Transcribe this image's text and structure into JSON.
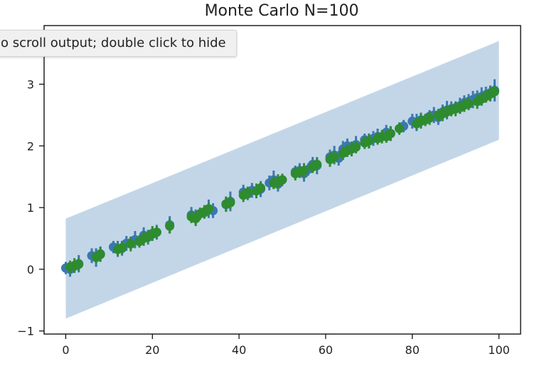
{
  "tooltip": {
    "text": "o scroll output; double click to hide"
  },
  "chart_data": {
    "type": "scatter",
    "title": "Monte Carlo N=100",
    "xlabel": "",
    "ylabel": "",
    "xlim": [
      -5,
      105
    ],
    "ylim": [
      -1.05,
      3.95
    ],
    "xticks": [
      0,
      20,
      40,
      60,
      80,
      100
    ],
    "yticks": [
      -1,
      0,
      1,
      2,
      3
    ],
    "grid": false,
    "band": {
      "x": [
        0,
        100
      ],
      "lower": [
        -0.8,
        2.1
      ],
      "upper": [
        0.82,
        3.7
      ]
    },
    "series": [
      {
        "x": [
          0,
          1,
          2,
          3,
          6,
          7,
          8,
          11,
          12,
          13,
          14,
          15,
          16,
          18,
          19,
          20,
          21,
          24,
          29,
          30,
          32,
          33,
          34,
          37,
          38,
          41,
          42,
          43,
          45,
          47,
          48,
          49,
          53,
          54,
          55,
          56,
          57,
          58,
          61,
          62,
          63,
          64,
          65,
          67,
          69,
          70,
          71,
          72,
          74,
          75,
          78,
          80,
          81,
          82,
          84,
          85,
          86,
          87,
          88,
          89,
          90,
          91,
          92,
          93,
          94,
          95,
          96,
          97,
          98,
          99
        ],
        "y": [
          0.02,
          0.0,
          0.05,
          0.09,
          0.22,
          0.19,
          0.25,
          0.36,
          0.33,
          0.34,
          0.42,
          0.43,
          0.48,
          0.55,
          0.52,
          0.57,
          0.6,
          0.72,
          0.88,
          0.85,
          0.92,
          0.98,
          0.95,
          1.05,
          1.1,
          1.25,
          1.22,
          1.28,
          1.3,
          1.4,
          1.45,
          1.38,
          1.58,
          1.6,
          1.55,
          1.62,
          1.7,
          1.68,
          1.82,
          1.85,
          1.8,
          1.95,
          2.0,
          2.02,
          2.1,
          2.08,
          2.12,
          2.15,
          2.22,
          2.2,
          2.32,
          2.4,
          2.38,
          2.42,
          2.48,
          2.5,
          2.46,
          2.55,
          2.58,
          2.6,
          2.62,
          2.65,
          2.7,
          2.72,
          2.75,
          2.78,
          2.8,
          2.83,
          2.86,
          2.9
        ],
        "yerr": [
          0.1,
          0.12,
          0.1,
          0.14,
          0.12,
          0.15,
          0.12,
          0.1,
          0.13,
          0.12,
          0.12,
          0.1,
          0.14,
          0.13,
          0.12,
          0.1,
          0.12,
          0.14,
          0.13,
          0.12,
          0.1,
          0.15,
          0.12,
          0.12,
          0.16,
          0.12,
          0.1,
          0.12,
          0.13,
          0.12,
          0.15,
          0.12,
          0.1,
          0.12,
          0.13,
          0.1,
          0.12,
          0.14,
          0.12,
          0.15,
          0.12,
          0.13,
          0.12,
          0.14,
          0.1,
          0.12,
          0.12,
          0.13,
          0.12,
          0.12,
          0.1,
          0.12,
          0.14,
          0.12,
          0.1,
          0.13,
          0.12,
          0.12,
          0.15,
          0.12,
          0.1,
          0.13,
          0.12,
          0.12,
          0.14,
          0.12,
          0.15,
          0.13,
          0.12,
          0.18
        ],
        "color": "#3b78b0"
      },
      {
        "x": [
          1,
          2,
          3,
          7,
          8,
          12,
          13,
          15,
          17,
          18,
          19,
          20,
          21,
          24,
          29,
          30,
          31,
          32,
          33,
          37,
          38,
          41,
          42,
          44,
          45,
          48,
          49,
          50,
          53,
          54,
          55,
          57,
          58,
          61,
          62,
          64,
          65,
          66,
          67,
          69,
          70,
          72,
          73,
          74,
          75,
          77,
          81,
          82,
          83,
          84,
          86,
          87,
          88,
          89,
          90,
          91,
          92,
          93,
          95,
          96,
          97,
          98,
          99
        ],
        "y": [
          0.04,
          0.06,
          0.08,
          0.2,
          0.24,
          0.32,
          0.35,
          0.41,
          0.45,
          0.5,
          0.53,
          0.58,
          0.6,
          0.7,
          0.85,
          0.82,
          0.9,
          0.93,
          0.98,
          1.06,
          1.08,
          1.2,
          1.24,
          1.27,
          1.32,
          1.4,
          1.42,
          1.45,
          1.55,
          1.58,
          1.6,
          1.66,
          1.7,
          1.78,
          1.82,
          1.88,
          1.92,
          1.95,
          1.98,
          2.05,
          2.08,
          2.12,
          2.15,
          2.15,
          2.2,
          2.28,
          2.36,
          2.4,
          2.42,
          2.45,
          2.5,
          2.52,
          2.55,
          2.58,
          2.6,
          2.62,
          2.66,
          2.68,
          2.72,
          2.76,
          2.8,
          2.84,
          2.88
        ],
        "yerr": [
          0.1,
          0.12,
          0.1,
          0.1,
          0.12,
          0.1,
          0.11,
          0.12,
          0.1,
          0.12,
          0.1,
          0.12,
          0.1,
          0.12,
          0.1,
          0.12,
          0.1,
          0.11,
          0.1,
          0.12,
          0.1,
          0.11,
          0.1,
          0.12,
          0.1,
          0.1,
          0.12,
          0.1,
          0.11,
          0.1,
          0.12,
          0.1,
          0.1,
          0.12,
          0.1,
          0.11,
          0.1,
          0.12,
          0.1,
          0.1,
          0.12,
          0.1,
          0.11,
          0.1,
          0.12,
          0.1,
          0.1,
          0.12,
          0.1,
          0.11,
          0.1,
          0.12,
          0.1,
          0.1,
          0.12,
          0.1,
          0.11,
          0.1,
          0.12,
          0.1,
          0.1,
          0.12,
          0.1
        ],
        "color": "#2e8b2e"
      }
    ],
    "colors": {
      "band": "#c3d6e8",
      "axis": "#000000",
      "text": "#222222"
    }
  }
}
